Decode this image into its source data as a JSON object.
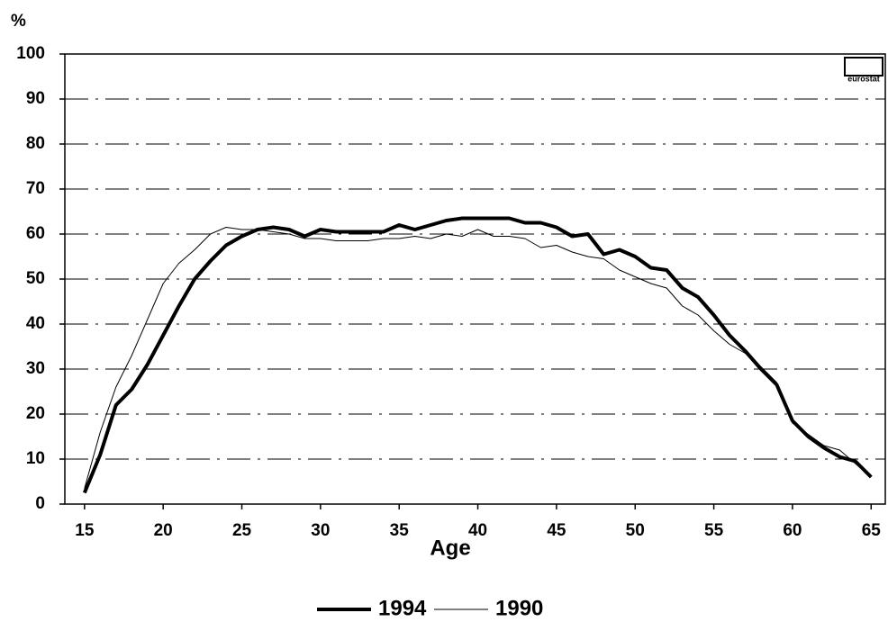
{
  "chart_data": {
    "type": "line",
    "y_label": "%",
    "x_label": "Age",
    "logo_text": "eurostat",
    "x": [
      15,
      16,
      17,
      18,
      19,
      20,
      21,
      22,
      23,
      24,
      25,
      26,
      27,
      28,
      29,
      30,
      31,
      32,
      33,
      34,
      35,
      36,
      37,
      38,
      39,
      40,
      41,
      42,
      43,
      44,
      45,
      46,
      47,
      48,
      49,
      50,
      51,
      52,
      53,
      54,
      55,
      56,
      57,
      58,
      59,
      60,
      61,
      62,
      63,
      64,
      65
    ],
    "series": [
      {
        "name": "1994",
        "color": "#000000",
        "line_width": 4,
        "values": [
          2.5,
          11,
          22,
          25.5,
          31,
          37.5,
          44,
          50,
          54,
          57.5,
          59.5,
          61,
          61.5,
          61,
          59.5,
          61,
          60.5,
          60.5,
          60.5,
          60.5,
          62,
          61,
          62,
          63,
          63.5,
          63.5,
          63.5,
          63.5,
          62.5,
          62.5,
          61.5,
          59.5,
          60,
          55.5,
          56.5,
          55,
          52.5,
          52,
          48,
          46,
          42,
          37.5,
          34,
          30,
          26.5,
          18.5,
          15,
          12.5,
          10.5,
          9.5,
          6
        ]
      },
      {
        "name": "1990",
        "color": "#000000",
        "line_width": 1,
        "values": [
          3.5,
          16,
          26,
          33,
          41,
          49,
          53.5,
          56.5,
          60,
          61.5,
          61,
          61,
          60.5,
          60,
          59,
          59,
          58.5,
          58.5,
          58.5,
          59,
          59,
          59.5,
          59,
          60,
          59.5,
          61,
          59.5,
          59.5,
          59,
          57,
          57.5,
          56,
          55,
          54.5,
          52,
          50.5,
          49,
          48,
          44,
          42,
          38.5,
          35.5,
          33.5,
          30.5,
          27,
          18,
          15.5,
          13,
          12,
          9,
          6
        ]
      }
    ],
    "xlim": [
      13.75,
      65.9
    ],
    "xticks": [
      15,
      20,
      25,
      30,
      35,
      40,
      45,
      50,
      55,
      60,
      65
    ],
    "ylim": [
      0,
      100
    ],
    "yticks": [
      0,
      10,
      20,
      30,
      40,
      50,
      60,
      70,
      80,
      90,
      100
    ],
    "grid": true,
    "legend": "bottom"
  }
}
